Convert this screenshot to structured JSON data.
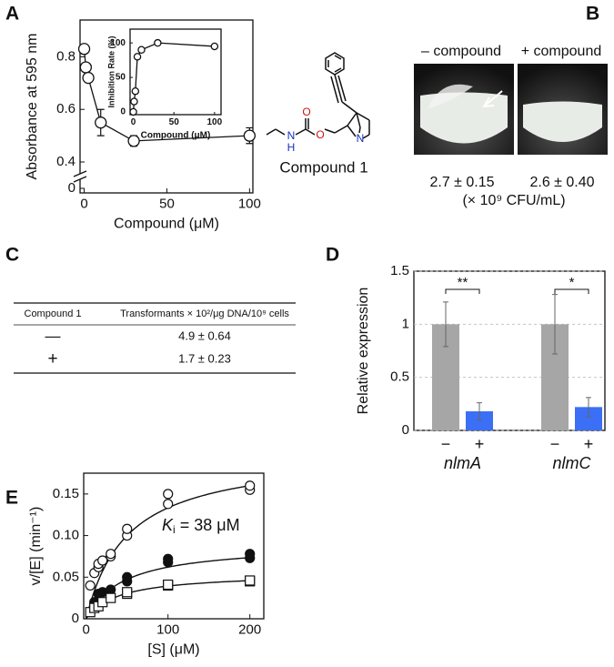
{
  "panel_labels": [
    "A",
    "B",
    "C",
    "D",
    "E"
  ],
  "chart_data": [
    {
      "type": "line",
      "ylabel": "Absorbance at 595 nm",
      "xlabel": "Compound (μM)",
      "x": [
        0,
        1,
        2.5,
        10,
        30,
        100
      ],
      "values": [
        0.83,
        0.76,
        0.72,
        0.55,
        0.48,
        0.5
      ],
      "errors": [
        0.01,
        0.01,
        0.01,
        0.05,
        0.02,
        0.03
      ],
      "xlim": [
        -2.5,
        102
      ],
      "ylim": [
        0,
        0.94
      ],
      "axis_break": [
        0,
        0.4
      ],
      "xticks": [
        0,
        50,
        100
      ],
      "yticks": [
        0,
        0.4,
        0.6,
        0.8
      ],
      "color": "#111111"
    },
    {
      "type": "line",
      "ylabel": "Inhibition Rate (%)",
      "xlabel": "Compound (μM)",
      "x": [
        0,
        1,
        2.5,
        5,
        10,
        30,
        100
      ],
      "values": [
        0,
        15,
        30,
        80,
        90,
        100,
        95
      ],
      "xlim": [
        -4,
        108
      ],
      "ylim": [
        -4,
        120
      ],
      "xticks": [
        0,
        50,
        100
      ],
      "yticks": [
        0,
        50,
        100
      ],
      "color": "#111111"
    },
    {
      "type": "bar",
      "ylabel": "Relative expression",
      "categories": [
        "−",
        "+",
        "−",
        "+"
      ],
      "groups": [
        "nlmA",
        "nlmC"
      ],
      "values": [
        1,
        0.18,
        1,
        0.22
      ],
      "errors": [
        0.21,
        0.08,
        0.28,
        0.09
      ],
      "colors": [
        "#a6a6a6",
        "#3b6ff5",
        "#a6a6a6",
        "#3b6ff5"
      ],
      "significance": [
        "**",
        "*"
      ],
      "ylim": [
        0,
        1.5
      ],
      "yticks": [
        0,
        0.5,
        1,
        1.5
      ],
      "grid": true
    },
    {
      "type": "scatter",
      "ylabel": "v/[E] (min⁻¹)",
      "xlabel": "[S] (μM)",
      "annotation": {
        "symbol": "K",
        "sub": "i",
        "rest": " = 38 μM"
      },
      "xlim": [
        -3,
        217
      ],
      "ylim": [
        0,
        0.175
      ],
      "xticks": [
        0,
        100,
        200
      ],
      "yticks": [
        0,
        0.05,
        {
          "value": 0.1,
          "label": "0.10"
        },
        0.15
      ],
      "series": [
        {
          "marker": "circle-open",
          "x": [
            5,
            10,
            15,
            15,
            20,
            30,
            30,
            50,
            50,
            100,
            100,
            200,
            200
          ],
          "values": [
            0.04,
            0.055,
            0.062,
            0.066,
            0.07,
            0.075,
            0.078,
            0.1,
            0.108,
            0.138,
            0.15,
            0.155,
            0.16
          ],
          "fit": {
            "vmax": 0.2,
            "km": 50
          }
        },
        {
          "marker": "circle-filled",
          "x": [
            10,
            15,
            20,
            30,
            50,
            50,
            100,
            100,
            200,
            200
          ],
          "values": [
            0.02,
            0.03,
            0.032,
            0.035,
            0.045,
            0.05,
            0.068,
            0.072,
            0.073,
            0.078
          ],
          "fit": {
            "vmax": 0.09,
            "km": 45
          }
        },
        {
          "marker": "square-open",
          "x": [
            5,
            10,
            15,
            20,
            30,
            50,
            50,
            100,
            100,
            200,
            200
          ],
          "values": [
            0.008,
            0.013,
            0.015,
            0.02,
            0.025,
            0.03,
            0.032,
            0.04,
            0.041,
            0.045,
            0.046
          ],
          "fit": {
            "vmax": 0.055,
            "km": 40
          }
        }
      ]
    }
  ],
  "structure": {
    "atoms": [
      "O",
      "H",
      "N",
      "O",
      "N"
    ],
    "label": "Compound 1"
  },
  "photo": {
    "labels": [
      "– compound",
      "+ compound"
    ],
    "counts": [
      "2.7 ± 0.15",
      "2.6 ± 0.40"
    ],
    "unit": "(× 10⁹ CFU/mL)"
  },
  "table": {
    "header": [
      "Compound 1",
      "Transformants × 10²/μg DNA/10⁹ cells"
    ],
    "rows": [
      [
        "—",
        "4.9 ± 0.64"
      ],
      [
        "+",
        "1.7 ± 0.23"
      ]
    ]
  }
}
